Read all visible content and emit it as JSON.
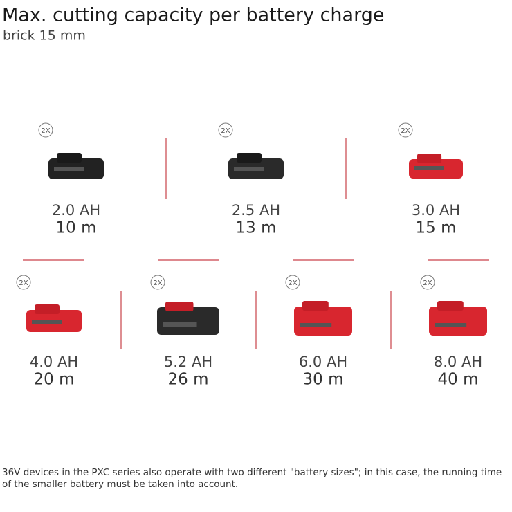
{
  "header": {
    "title": "Max. cutting capacity per battery charge",
    "subtitle": "brick 15 mm"
  },
  "items": [
    {
      "badge": "2X",
      "capacity": "2.0 AH",
      "cutting": "10 m"
    },
    {
      "badge": "2X",
      "capacity": "2.5 AH",
      "cutting": "13 m"
    },
    {
      "badge": "2X",
      "capacity": "3.0 AH",
      "cutting": "15 m"
    },
    {
      "badge": "2X",
      "capacity": "4.0 AH",
      "cutting": "20 m"
    },
    {
      "badge": "2X",
      "capacity": "5.2 AH",
      "cutting": "26 m"
    },
    {
      "badge": "2X",
      "capacity": "6.0 AH",
      "cutting": "30 m"
    },
    {
      "badge": "2X",
      "capacity": "8.0 AH",
      "cutting": "40 m"
    }
  ],
  "footnote": {
    "lines": [
      "36V devices in the PXC series also operate with two different \"battery sizes\"; in this case, the running time",
      "of the smaller battery must be taken into account."
    ]
  }
}
